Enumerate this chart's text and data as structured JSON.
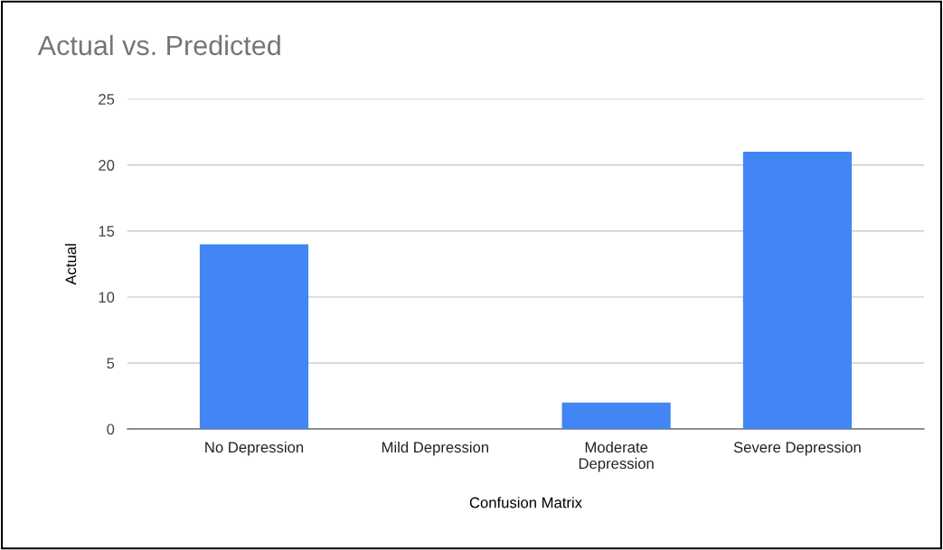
{
  "chart_data": {
    "type": "bar",
    "title": "Actual vs. Predicted",
    "xlabel": "Confusion Matrix",
    "ylabel": "Actual",
    "categories": [
      "No Depression",
      "Mild Depression",
      "Moderate\nDepression",
      "Severe Depression"
    ],
    "values": [
      14,
      0,
      2,
      21
    ],
    "color": "#4285f4",
    "ylim": [
      0,
      25
    ],
    "yticks": [
      0,
      5,
      10,
      15,
      20,
      25
    ],
    "grid": "y",
    "legend": false
  }
}
